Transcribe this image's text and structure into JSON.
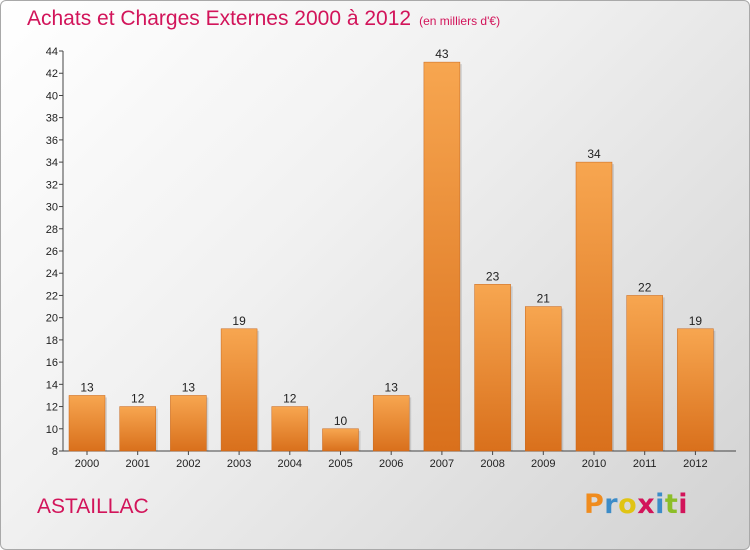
{
  "header": {
    "title": "Achats et Charges Externes 2000 à 2012",
    "unit": "(en milliers d'€)"
  },
  "footer": {
    "commune": "ASTAILLAC",
    "brand_letters": [
      "P",
      "r",
      "o",
      "x",
      "i",
      "t",
      "i"
    ],
    "brand_colors": [
      "#f08c1e",
      "#3c8cc8",
      "#e0c414",
      "#d2145a",
      "#3c8cc8",
      "#8cbe28",
      "#d2145a"
    ]
  },
  "colors": {
    "accent": "#d2145a",
    "bar_light": "#f7a650",
    "bar_dark": "#d9701c"
  },
  "chart_data": {
    "type": "bar",
    "title": "Achats et Charges Externes 2000 à 2012",
    "subtitle": "(en milliers d'€)",
    "categories": [
      "2000",
      "2001",
      "2002",
      "2003",
      "2004",
      "2005",
      "2006",
      "2007",
      "2008",
      "2009",
      "2010",
      "2011",
      "2012"
    ],
    "values": [
      13,
      12,
      13,
      19,
      12,
      10,
      13,
      43,
      23,
      21,
      34,
      22,
      19
    ],
    "ylim": [
      8,
      44
    ],
    "yticks": [
      8,
      10,
      12,
      14,
      16,
      18,
      20,
      22,
      24,
      26,
      28,
      30,
      32,
      34,
      36,
      38,
      40,
      42,
      44
    ],
    "grid": false,
    "legend": "none"
  }
}
